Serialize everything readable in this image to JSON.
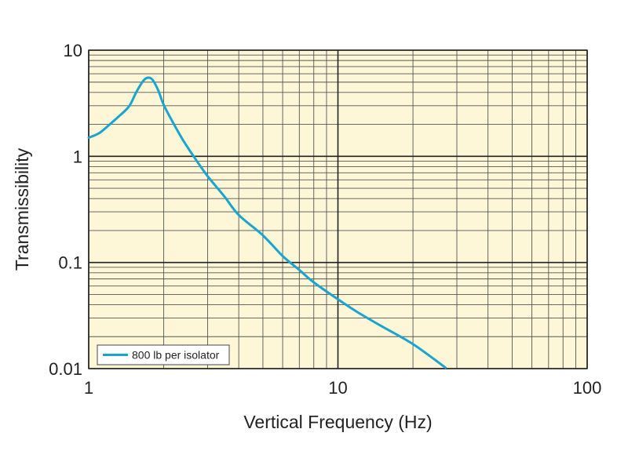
{
  "chart_data": {
    "type": "line",
    "title": "",
    "xlabel": "Vertical Frequency (Hz)",
    "ylabel": "Transmissibility",
    "xscale": "log",
    "yscale": "log",
    "xlim": [
      1,
      100
    ],
    "ylim": [
      0.01,
      10
    ],
    "xticks": [
      {
        "value": 1,
        "label": "1"
      },
      {
        "value": 10,
        "label": "10"
      },
      {
        "value": 100,
        "label": "100"
      }
    ],
    "yticks": [
      {
        "value": 10,
        "label": "10"
      },
      {
        "value": 1,
        "label": "1"
      },
      {
        "value": 0.1,
        "label": "0.1"
      },
      {
        "value": 0.01,
        "label": "0.01"
      }
    ],
    "grid": true,
    "background_color": "#fdf7d8",
    "legend_position": "bottom-left",
    "series": [
      {
        "name": "800 lb per isolator",
        "color": "#1aa5cf",
        "x": [
          1.0,
          1.1,
          1.2,
          1.3,
          1.45,
          1.55,
          1.65,
          1.72,
          1.8,
          1.9,
          2.0,
          2.2,
          2.4,
          2.7,
          3.0,
          3.5,
          4.0,
          5.0,
          6.0,
          7.0,
          8.0,
          10.0,
          12.0,
          15.0,
          20.0,
          27.0
        ],
        "y": [
          1.5,
          1.65,
          1.95,
          2.3,
          2.95,
          4.0,
          5.1,
          5.5,
          5.3,
          4.2,
          3.05,
          2.0,
          1.4,
          0.92,
          0.65,
          0.42,
          0.28,
          0.18,
          0.115,
          0.085,
          0.065,
          0.045,
          0.034,
          0.025,
          0.017,
          0.0102
        ]
      }
    ]
  }
}
